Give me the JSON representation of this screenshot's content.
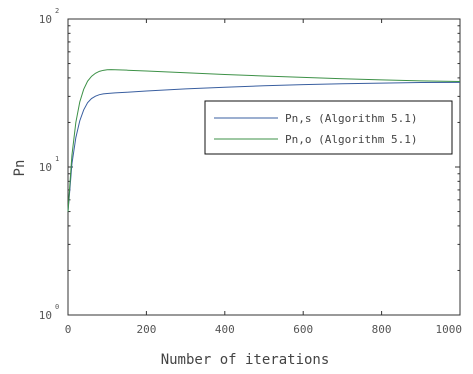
{
  "chart_data": {
    "type": "line",
    "xlabel": "Number of iterations",
    "ylabel": "Pn",
    "xlim": [
      0,
      1000
    ],
    "ylim": [
      1,
      100
    ],
    "y_scale": "log",
    "x_ticks": [
      "0",
      "200",
      "400",
      "600",
      "800",
      "1000"
    ],
    "x_tick_values": [
      0,
      200,
      400,
      600,
      800,
      1000
    ],
    "y_ticks": [
      {
        "value": 1,
        "base": "10",
        "exp": "0"
      },
      {
        "value": 10,
        "base": "10",
        "exp": "1"
      },
      {
        "value": 100,
        "base": "10",
        "exp": "2"
      }
    ],
    "grid": false,
    "legend_position": "right-center",
    "series": [
      {
        "name": "Pn,s (Algorithm 5.1)",
        "color": "#3a5fa0",
        "x": [
          0,
          5,
          10,
          20,
          30,
          40,
          50,
          60,
          70,
          80,
          90,
          100,
          120,
          150,
          200,
          300,
          400,
          500,
          600,
          700,
          800,
          900,
          1000
        ],
        "y": [
          5.0,
          7.2,
          10.5,
          15.8,
          20.5,
          24.3,
          27.2,
          29.0,
          30.1,
          30.8,
          31.2,
          31.4,
          31.7,
          32.0,
          32.6,
          33.7,
          34.6,
          35.4,
          36.0,
          36.5,
          36.9,
          37.2,
          37.3
        ]
      },
      {
        "name": "Pn,o (Algorithm 5.1)",
        "color": "#3d9147",
        "x": [
          0,
          5,
          10,
          20,
          30,
          40,
          50,
          60,
          70,
          80,
          90,
          100,
          110,
          120,
          150,
          200,
          300,
          400,
          500,
          600,
          700,
          800,
          900,
          1000
        ],
        "y": [
          5.0,
          7.8,
          12.0,
          20.0,
          27.5,
          33.5,
          38.0,
          41.0,
          43.0,
          44.3,
          45.0,
          45.4,
          45.5,
          45.4,
          45.1,
          44.5,
          43.3,
          42.2,
          41.2,
          40.3,
          39.5,
          38.8,
          38.2,
          37.8
        ]
      }
    ]
  }
}
